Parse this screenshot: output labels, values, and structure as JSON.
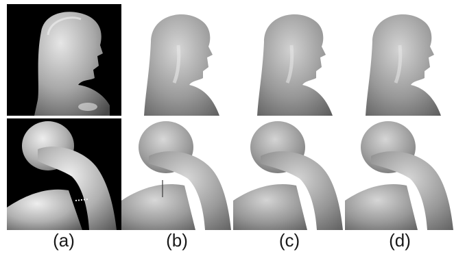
{
  "figure": {
    "captions": [
      "(a)",
      "(b)",
      "(c)",
      "(d)"
    ],
    "panel_subjects": {
      "top_row": "bust-head-icon",
      "bottom_row": "figure-arm-pose-icon"
    },
    "colors": {
      "photo_background": "#000000",
      "render_background": "#ffffff",
      "surface_light": "#d9d9d9",
      "surface_dark": "#5a5a5a"
    }
  }
}
